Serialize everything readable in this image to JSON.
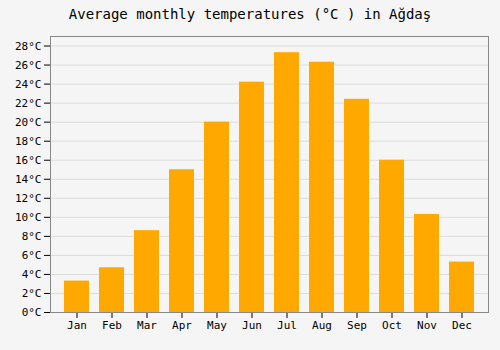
{
  "chart_data": {
    "type": "bar",
    "title": "Average monthly temperatures (°C ) in Ağdaş",
    "categories": [
      "Jan",
      "Feb",
      "Mar",
      "Apr",
      "May",
      "Jun",
      "Jul",
      "Aug",
      "Sep",
      "Oct",
      "Nov",
      "Dec"
    ],
    "values": [
      3.3,
      4.7,
      8.6,
      15.0,
      20.0,
      24.2,
      27.3,
      26.3,
      22.4,
      16.0,
      10.3,
      5.3
    ],
    "color": "#FFA800",
    "ylim": [
      0,
      29
    ],
    "yticks": [
      {
        "value": 0,
        "label": "0°C"
      },
      {
        "value": 2,
        "label": "2°C"
      },
      {
        "value": 4,
        "label": "4°C"
      },
      {
        "value": 6,
        "label": "6°C"
      },
      {
        "value": 8,
        "label": "8°C"
      },
      {
        "value": 10,
        "label": "10°C"
      },
      {
        "value": 12,
        "label": "12°C"
      },
      {
        "value": 14,
        "label": "14°C"
      },
      {
        "value": 16,
        "label": "16°C"
      },
      {
        "value": 18,
        "label": "18°C"
      },
      {
        "value": 20,
        "label": "20°C"
      },
      {
        "value": 22,
        "label": "22°C"
      },
      {
        "value": 24,
        "label": "24°C"
      },
      {
        "value": 26,
        "label": "26°C"
      },
      {
        "value": 28,
        "label": "28°C"
      }
    ],
    "grid": true
  }
}
